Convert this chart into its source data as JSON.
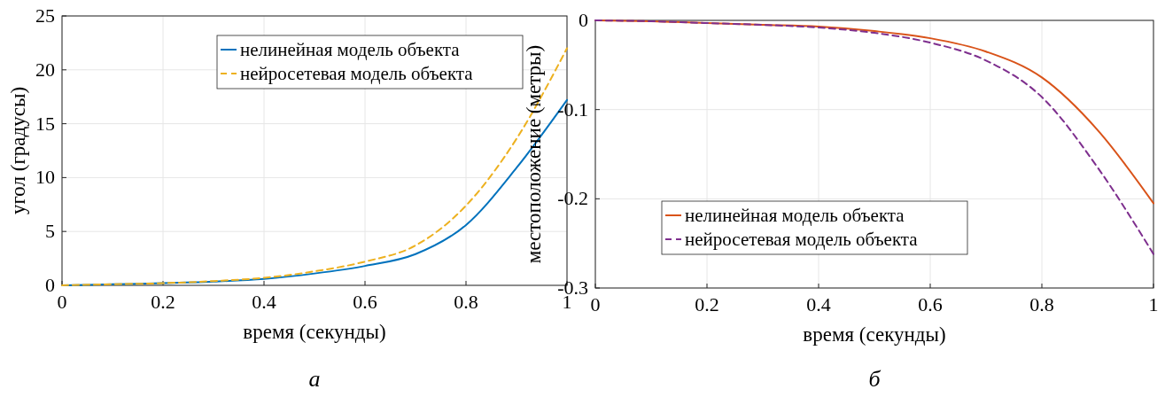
{
  "chart_data": [
    {
      "type": "line",
      "xlabel": "время (секунды)",
      "ylabel": "угол (градусы)",
      "xlim": [
        0,
        1
      ],
      "ylim": [
        0,
        25
      ],
      "xticks": [
        0,
        0.2,
        0.4,
        0.6,
        0.8,
        1
      ],
      "yticks": [
        0,
        5,
        10,
        15,
        20,
        25
      ],
      "grid": true,
      "legend": "top right",
      "annotations": [
        "а"
      ],
      "x": [
        0,
        0.1,
        0.2,
        0.3,
        0.4,
        0.5,
        0.6,
        0.7,
        0.8,
        0.9,
        1
      ],
      "series": [
        {
          "name": "нелинейная модель объекта",
          "color": "#0072bd",
          "line_style": "solid",
          "values": [
            0,
            0.1,
            0.2,
            0.35,
            0.6,
            1.1,
            1.8,
            2.9,
            5.6,
            10.9,
            17.2
          ]
        },
        {
          "name": "нейросетевая модель объекта",
          "color": "#edb120",
          "line_style": "dashed",
          "values": [
            0,
            0.1,
            0.2,
            0.4,
            0.7,
            1.3,
            2.2,
            3.7,
            7.4,
            13.6,
            22
          ]
        }
      ]
    },
    {
      "type": "line",
      "xlabel": "время (секунды)",
      "ylabel": "местоположение (метры)",
      "xlim": [
        0,
        1
      ],
      "ylim": [
        -0.3,
        0
      ],
      "xticks": [
        0,
        0.2,
        0.4,
        0.6,
        0.8,
        1
      ],
      "yticks": [
        -0.3,
        -0.2,
        -0.1,
        0
      ],
      "grid": true,
      "legend": "bottom left",
      "annotations": [
        "б"
      ],
      "x": [
        0,
        0.1,
        0.2,
        0.3,
        0.4,
        0.5,
        0.6,
        0.7,
        0.8,
        0.9,
        1
      ],
      "series": [
        {
          "name": "нелинейная модель объекта",
          "color": "#d95319",
          "line_style": "solid",
          "values": [
            0,
            -0.001,
            -0.003,
            -0.005,
            -0.007,
            -0.012,
            -0.02,
            -0.035,
            -0.064,
            -0.123,
            -0.205
          ]
        },
        {
          "name": "нейросетевая модель объекта",
          "color": "#7e2f8e",
          "line_style": "dashed",
          "values": [
            0,
            -0.001,
            -0.003,
            -0.005,
            -0.008,
            -0.014,
            -0.025,
            -0.045,
            -0.086,
            -0.165,
            -0.262
          ]
        }
      ]
    }
  ]
}
